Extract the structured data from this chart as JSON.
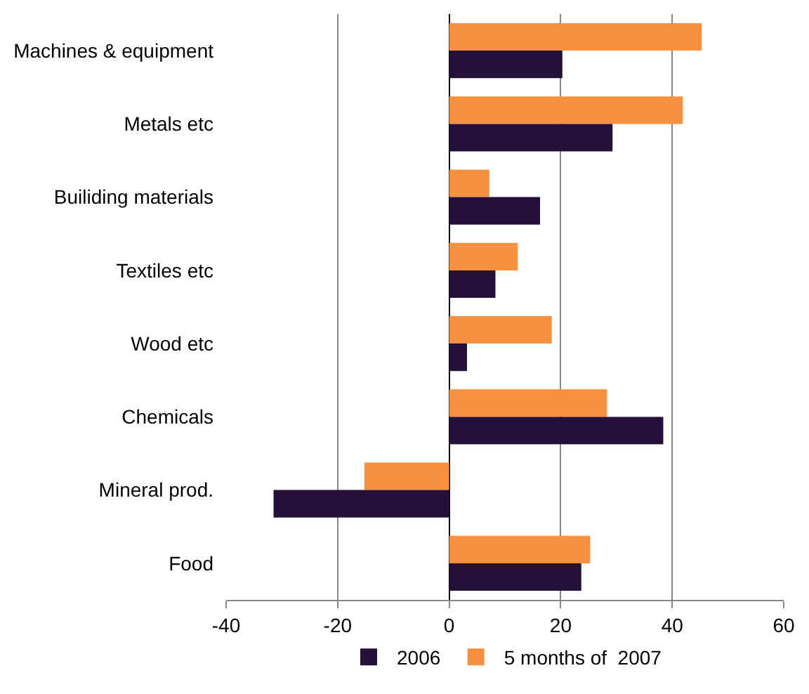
{
  "chart_data": {
    "type": "bar",
    "orientation": "horizontal",
    "categories": [
      "Machines & equipment",
      "Metals etc",
      "Builiding materials",
      "Textiles etc",
      "Wood etc",
      "Chemicals",
      "Mineral prod.",
      "Food"
    ],
    "series": [
      {
        "name": "2006",
        "color": "#26103a",
        "values": [
          20.3,
          29.3,
          16.3,
          8.3,
          3.2,
          38.4,
          -31.5,
          23.7
        ]
      },
      {
        "name": "5 months of  2007",
        "color": "#f79140",
        "values": [
          45.3,
          41.9,
          7.2,
          12.3,
          18.4,
          28.3,
          -15.2,
          25.3
        ]
      }
    ],
    "xlim": [
      -40,
      60
    ],
    "xticks": [
      -40,
      -20,
      0,
      20,
      40,
      60
    ],
    "grid": "x",
    "legend": "bottom"
  }
}
